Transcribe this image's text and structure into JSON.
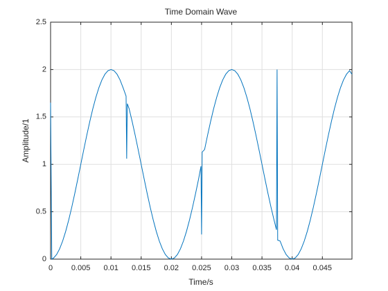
{
  "chart_data": {
    "type": "line",
    "title": "Time Domain Wave",
    "x_label": "Time/s",
    "y_label": "Amplitude/1",
    "color": "#0072bd",
    "grid": true,
    "xlim": [
      0,
      0.0499
    ],
    "xticks": [
      0,
      0.005,
      0.01,
      0.015,
      0.02,
      0.025,
      0.03,
      0.035,
      0.04,
      0.045
    ],
    "ylim": [
      0,
      2.5
    ],
    "yticks": [
      0,
      0.5,
      1,
      1.5,
      2,
      2.5
    ],
    "x": [
      0,
      0.0002,
      0.0005,
      0.001,
      0.0015,
      0.002,
      0.0025,
      0.003,
      0.0035,
      0.004,
      0.0045,
      0.005,
      0.0055,
      0.006,
      0.0065,
      0.007,
      0.0075,
      0.008,
      0.0085,
      0.009,
      0.0095,
      0.01,
      0.0105,
      0.011,
      0.0115,
      0.012,
      0.0125,
      0.0126,
      0.0127,
      0.013,
      0.0135,
      0.014,
      0.0145,
      0.015,
      0.0155,
      0.016,
      0.0165,
      0.017,
      0.0175,
      0.018,
      0.0185,
      0.019,
      0.0195,
      0.02,
      0.0205,
      0.021,
      0.0215,
      0.022,
      0.0225,
      0.023,
      0.0235,
      0.024,
      0.0245,
      0.0249,
      0.025,
      0.0251,
      0.0255,
      0.026,
      0.0265,
      0.027,
      0.0275,
      0.028,
      0.0285,
      0.029,
      0.0295,
      0.03,
      0.0305,
      0.031,
      0.0315,
      0.032,
      0.0325,
      0.033,
      0.0335,
      0.034,
      0.0345,
      0.035,
      0.0355,
      0.036,
      0.0365,
      0.037,
      0.0374,
      0.0375,
      0.0376,
      0.038,
      0.0385,
      0.039,
      0.0395,
      0.04,
      0.0405,
      0.041,
      0.0415,
      0.042,
      0.0425,
      0.043,
      0.0435,
      0.044,
      0.0445,
      0.045,
      0.0455,
      0.046,
      0.0465,
      0.047,
      0.0475,
      0.048,
      0.0485,
      0.049,
      0.0495,
      0.0499
    ],
    "values": [
      1.65,
      0,
      0.0123,
      0.0489,
      0.109,
      0.191,
      0.2929,
      0.4122,
      0.546,
      0.691,
      0.8436,
      1,
      1.1564,
      1.309,
      1.454,
      1.5878,
      1.7071,
      1.809,
      1.891,
      1.9511,
      1.9877,
      2,
      1.9877,
      1.9511,
      1.891,
      1.809,
      1.72,
      1.06,
      1.64,
      1.5878,
      1.454,
      1.309,
      1.1564,
      1,
      0.8436,
      0.691,
      0.546,
      0.4122,
      0.2929,
      0.191,
      0.109,
      0.0489,
      0.0123,
      0,
      0.0123,
      0.0489,
      0.109,
      0.191,
      0.2929,
      0.4122,
      0.546,
      0.691,
      0.8436,
      0.98,
      0.26,
      1.13,
      1.1564,
      1.309,
      1.454,
      1.5878,
      1.7071,
      1.809,
      1.891,
      1.9511,
      1.9877,
      2,
      1.9877,
      1.9511,
      1.891,
      1.809,
      1.7071,
      1.5878,
      1.454,
      1.309,
      1.1564,
      1,
      0.8436,
      0.691,
      0.546,
      0.4122,
      0.31,
      2,
      0.2,
      0.191,
      0.109,
      0.0489,
      0.0123,
      0,
      0.0123,
      0.0489,
      0.109,
      0.191,
      0.2929,
      0.4122,
      0.546,
      0.691,
      0.8436,
      1,
      1.1564,
      1.309,
      1.454,
      1.5878,
      1.7071,
      1.809,
      1.891,
      1.9511,
      1.9877,
      1.95
    ]
  }
}
